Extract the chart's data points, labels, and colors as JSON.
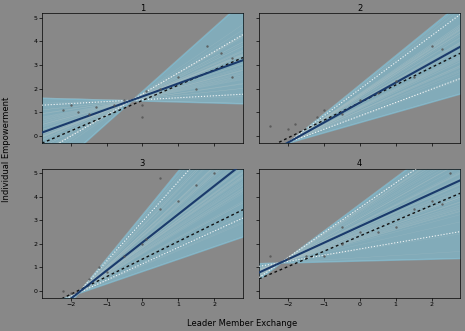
{
  "title": "",
  "xlabel": "Leader Member Exchange",
  "ylabel": "Individual Empowerment",
  "subplot_labels": [
    "1",
    "2",
    "3",
    "4"
  ],
  "xlim": [
    -2.8,
    2.8
  ],
  "ylim": [
    -0.3,
    5.2
  ],
  "xticks": [
    -2,
    -1,
    0,
    1,
    2
  ],
  "yticks": [
    0,
    1,
    2,
    3,
    4,
    5
  ],
  "background_color": "#888888",
  "figure_background": "#888888",
  "light_blue_fill": "#7ec8e3",
  "dark_blue_line_color": "#1a3a6b",
  "black_dotted_color": "#111111",
  "sample_line_color": "#b0c4c8",
  "white_line_color": "#ffffff",
  "dot_color": "#555555",
  "teams": [
    {
      "pivot_x": -0.3,
      "pivot_y": 1.5,
      "slope_mean": 0.55,
      "slope_std": 0.25,
      "single_slope": 0.65,
      "single_pivot_y": 1.3,
      "n_samples": 60,
      "dots": [
        [
          -2.2,
          1.1
        ],
        [
          -2.0,
          1.3
        ],
        [
          -1.8,
          1.0
        ],
        [
          -1.5,
          0.9
        ],
        [
          -1.3,
          1.2
        ],
        [
          -0.8,
          1.3
        ],
        [
          -0.5,
          1.5
        ],
        [
          0.0,
          1.3
        ],
        [
          0.0,
          0.8
        ],
        [
          0.1,
          1.9
        ],
        [
          0.5,
          2.0
        ],
        [
          1.0,
          2.5
        ],
        [
          1.5,
          2.0
        ],
        [
          1.8,
          3.8
        ],
        [
          2.2,
          3.5
        ],
        [
          2.5,
          2.5
        ],
        [
          2.5,
          3.3
        ]
      ]
    },
    {
      "pivot_x": -2.0,
      "pivot_y": -0.3,
      "slope_mean": 0.85,
      "slope_std": 0.18,
      "single_slope": 0.75,
      "single_pivot_y": -0.1,
      "n_samples": 60,
      "dots": [
        [
          -2.5,
          0.4
        ],
        [
          -2.0,
          0.3
        ],
        [
          -1.8,
          0.5
        ],
        [
          -1.2,
          0.8
        ],
        [
          -1.0,
          1.1
        ],
        [
          -0.5,
          0.9
        ],
        [
          0.0,
          1.5
        ],
        [
          0.5,
          1.8
        ],
        [
          1.0,
          2.3
        ],
        [
          1.5,
          2.5
        ],
        [
          2.0,
          3.8
        ],
        [
          2.3,
          3.7
        ]
      ]
    },
    {
      "pivot_x": -1.8,
      "pivot_y": -0.1,
      "slope_mean": 1.2,
      "slope_std": 0.3,
      "single_slope": 0.75,
      "single_pivot_y": 0.0,
      "n_samples": 60,
      "dots": [
        [
          -2.2,
          0.0
        ],
        [
          -2.0,
          -0.1
        ],
        [
          -1.5,
          0.5
        ],
        [
          -1.2,
          1.0
        ],
        [
          -1.0,
          0.8
        ],
        [
          -0.5,
          1.5
        ],
        [
          0.0,
          2.0
        ],
        [
          0.1,
          2.2
        ],
        [
          0.5,
          3.5
        ],
        [
          0.5,
          4.8
        ],
        [
          1.0,
          3.8
        ],
        [
          1.5,
          4.5
        ],
        [
          2.0,
          5.0
        ]
      ]
    },
    {
      "pivot_x": -2.2,
      "pivot_y": 1.2,
      "slope_mean": 0.7,
      "slope_std": 0.25,
      "single_slope": 0.65,
      "single_pivot_y": 0.9,
      "n_samples": 60,
      "dots": [
        [
          -2.5,
          1.5
        ],
        [
          -2.0,
          1.4
        ],
        [
          -1.5,
          1.5
        ],
        [
          -1.0,
          1.5
        ],
        [
          -0.5,
          2.0
        ],
        [
          0.0,
          2.5
        ],
        [
          0.5,
          2.5
        ],
        [
          1.0,
          2.7
        ],
        [
          1.5,
          3.5
        ],
        [
          2.0,
          3.8
        ],
        [
          2.3,
          3.7
        ],
        [
          2.5,
          5.0
        ],
        [
          -0.5,
          2.7
        ]
      ]
    }
  ]
}
